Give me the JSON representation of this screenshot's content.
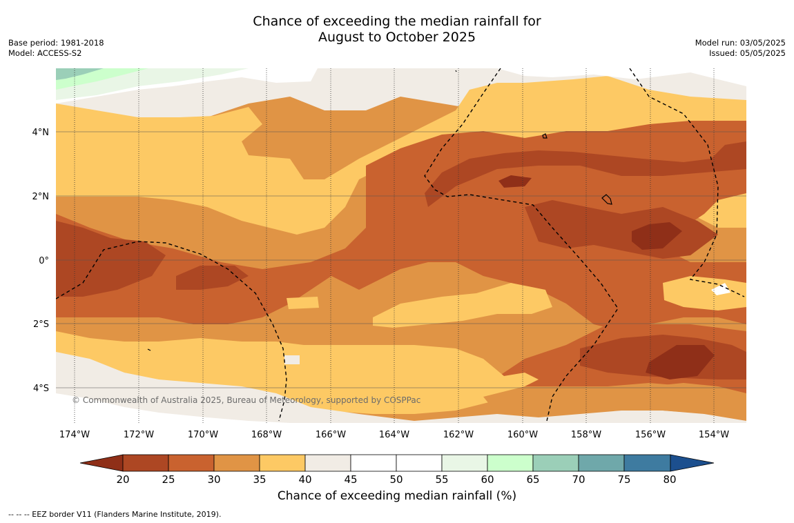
{
  "title": {
    "line1": "Chance of exceeding the median rainfall for",
    "line2": "August to October 2025"
  },
  "meta": {
    "base_period": "Base period: 1981-2018",
    "model": "Model: ACCESS-S2",
    "model_run": "Model run: 03/05/2025",
    "issued": "Issued: 05/05/2025"
  },
  "map": {
    "lon_ticks": [
      "174°W",
      "172°W",
      "170°W",
      "168°W",
      "166°W",
      "164°W",
      "162°W",
      "160°W",
      "158°W",
      "156°W",
      "154°W"
    ],
    "lat_ticks": [
      "4°N",
      "2°N",
      "0°",
      "2°S",
      "4°S"
    ],
    "copyright": "© Commonwealth of Australia 2025, Bureau of Meteorology, supported by COSPPac",
    "colors": {
      "c20_25": "#ad4723",
      "c25_30": "#c9622f",
      "c30_35": "#e09445",
      "c35_40": "#fdc964",
      "c40_45": "#f1ece5",
      "c45_55": "#ffffff",
      "c55_60": "#e9f6e6",
      "c60_65": "#ccffcc",
      "c65_70": "#9bcfb8",
      "c70_75": "#6fa8aa",
      "c75_80": "#3e7ba0",
      "below20": "#8f2f18",
      "above80": "#1c4f8e"
    }
  },
  "colorbar": {
    "ticks": [
      "20",
      "25",
      "30",
      "35",
      "40",
      "45",
      "50",
      "55",
      "60",
      "65",
      "70",
      "75",
      "80"
    ],
    "label": "Chance of exceeding median rainfall (%)"
  },
  "footnote": "--  --  -- EEZ border V11 (Flanders Marine Institute, 2019)."
}
